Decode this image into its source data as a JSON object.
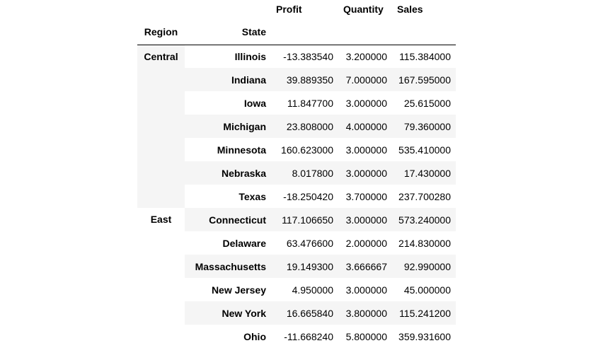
{
  "table": {
    "column_headers": [
      "Profit",
      "Quantity",
      "Sales"
    ],
    "index_names": [
      "Region",
      "State"
    ],
    "groups": [
      {
        "region": "Central",
        "rows": [
          {
            "state": "Illinois",
            "profit": "-13.383540",
            "quantity": "3.200000",
            "sales": "115.384000"
          },
          {
            "state": "Indiana",
            "profit": "39.889350",
            "quantity": "7.000000",
            "sales": "167.595000"
          },
          {
            "state": "Iowa",
            "profit": "11.847700",
            "quantity": "3.000000",
            "sales": "25.615000"
          },
          {
            "state": "Michigan",
            "profit": "23.808000",
            "quantity": "4.000000",
            "sales": "79.360000"
          },
          {
            "state": "Minnesota",
            "profit": "160.623000",
            "quantity": "3.000000",
            "sales": "535.410000"
          },
          {
            "state": "Nebraska",
            "profit": "8.017800",
            "quantity": "3.000000",
            "sales": "17.430000"
          },
          {
            "state": "Texas",
            "profit": "-18.250420",
            "quantity": "3.700000",
            "sales": "237.700280"
          }
        ]
      },
      {
        "region": "East",
        "rows": [
          {
            "state": "Connecticut",
            "profit": "117.106650",
            "quantity": "3.000000",
            "sales": "573.240000"
          },
          {
            "state": "Delaware",
            "profit": "63.476600",
            "quantity": "2.000000",
            "sales": "214.830000"
          },
          {
            "state": "Massachusetts",
            "profit": "19.149300",
            "quantity": "3.666667",
            "sales": "92.990000"
          },
          {
            "state": "New Jersey",
            "profit": "4.950000",
            "quantity": "3.000000",
            "sales": "45.000000"
          },
          {
            "state": "New York",
            "profit": "16.665840",
            "quantity": "3.800000",
            "sales": "115.241200"
          },
          {
            "state": "Ohio",
            "profit": "-11.668240",
            "quantity": "5.800000",
            "sales": "359.931600"
          }
        ]
      }
    ]
  }
}
